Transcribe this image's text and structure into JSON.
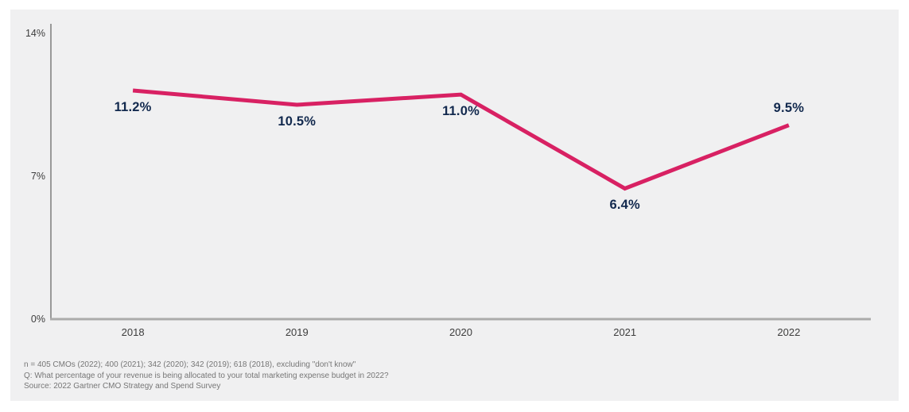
{
  "chart_data": {
    "type": "line",
    "categories": [
      "2018",
      "2019",
      "2020",
      "2021",
      "2022"
    ],
    "values": [
      11.2,
      10.5,
      11.0,
      6.4,
      9.5
    ],
    "point_labels": [
      "11.2%",
      "10.5%",
      "11.0%",
      "6.4%",
      "9.5%"
    ],
    "point_label_position": [
      "below",
      "below",
      "below",
      "below",
      "above"
    ],
    "yticks": [
      {
        "value": 0,
        "label": "0%"
      },
      {
        "value": 7,
        "label": "7%"
      },
      {
        "value": 14,
        "label": "14%"
      }
    ],
    "ylim": [
      0,
      14
    ],
    "title": "",
    "xlabel": "",
    "ylabel": "",
    "grid": false,
    "legend": false,
    "line_color": "#d82163",
    "point_label_color": "#12294e",
    "axis_color_y": "#999999",
    "axis_color_x": "#ababab",
    "tick_text_color": "#3d3d3d",
    "panel_background": "#f0f0f1"
  },
  "footer": {
    "line1": "n = 405 CMOs (2022); 400 (2021); 342 (2020); 342 (2019); 618 (2018), excluding \"don't know\"",
    "line2": "Q: What percentage of your revenue is being allocated to your total marketing expense budget in 2022?",
    "line3": "Source: 2022 Gartner CMO Strategy and Spend Survey"
  }
}
